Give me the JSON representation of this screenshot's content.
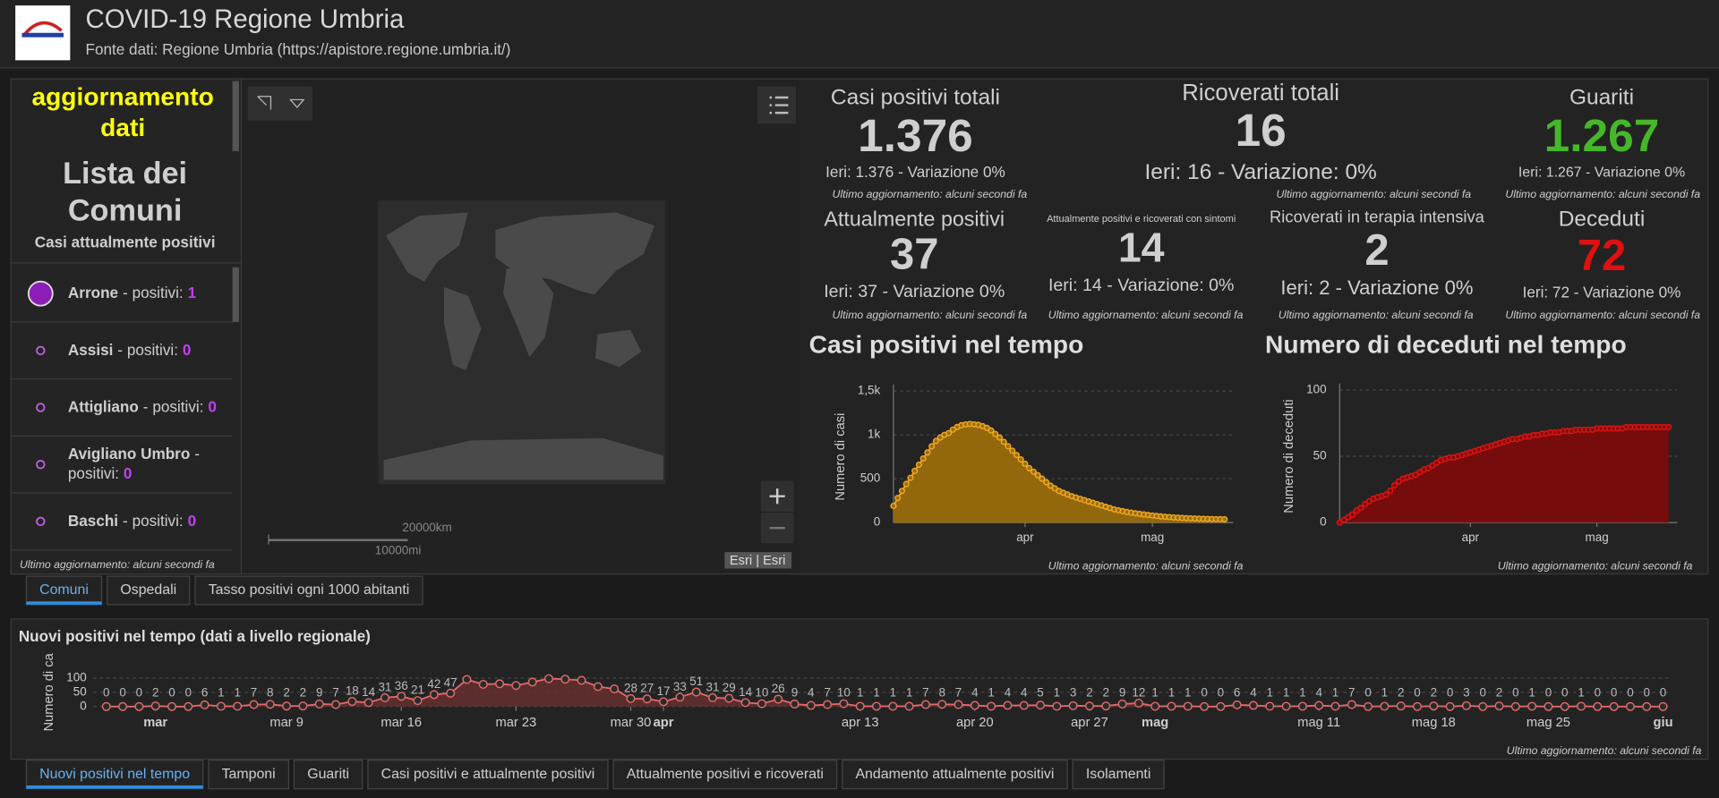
{
  "header": {
    "title": "COVID-19 Regione Umbria",
    "subtitle": "Fonte dati: Regione Umbria (https://apistore.regione.umbria.it/)"
  },
  "sidebar": {
    "heading_lines": [
      "aggiornamento",
      "dati"
    ],
    "list_title_lines": [
      "Lista dei",
      "Comuni"
    ],
    "list_subtitle": "Casi attualmente positivi",
    "separator": "-",
    "items": [
      {
        "name": "Arrone",
        "label": "positivi:",
        "value": 1
      },
      {
        "name": "Assisi",
        "label": "positivi:",
        "value": 0
      },
      {
        "name": "Attigliano",
        "label": "positivi:",
        "value": 0
      },
      {
        "name": "Avigliano Umbro",
        "label": "positivi:",
        "value": 0
      },
      {
        "name": "Baschi",
        "label": "positivi:",
        "value": 0
      }
    ],
    "footer": "Ultimo aggiornamento: alcuni secondi fa"
  },
  "map": {
    "scale_km": "20000km",
    "scale_mi": "10000mi",
    "attribution": "Esri | Esri"
  },
  "indicators": [
    {
      "title": "Casi positivi totali",
      "value": "1.376",
      "subtitle": "Ieri: 1.376 - Variazione 0%",
      "footer": "Ultimo aggiornamento: alcuni secondi fa",
      "color": "#cfcfcf"
    },
    {
      "title": "Ricoverati totali",
      "value": "16",
      "subtitle": "Ieri: 16 - Variazione: 0%",
      "footer": "Ultimo aggiornamento: alcuni secondi fa",
      "color": "#cfcfcf"
    },
    {
      "title": "Guariti",
      "value": "1.267",
      "subtitle": "Ieri: 1.267 - Variazione 0%",
      "footer": "Ultimo aggiornamento: alcuni secondi fa",
      "color": "#45b82a"
    },
    {
      "title": "Attualmente positivi",
      "value": "37",
      "subtitle": "Ieri: 37 - Variazione 0%",
      "footer": "Ultimo aggiornamento: alcuni secondi fa",
      "color": "#cfcfcf"
    },
    {
      "title": "Attualmente positivi e ricoverati con sintomi",
      "value": "14",
      "subtitle": "Ieri: 14 - Variazione: 0%",
      "footer": "Ultimo aggiornamento: alcuni secondi fa",
      "color": "#cfcfcf"
    },
    {
      "title": "Ricoverati in terapia intensiva",
      "value": "2",
      "subtitle": "Ieri: 2 - Variazione 0%",
      "footer": "Ultimo aggiornamento: alcuni secondi fa",
      "color": "#cfcfcf"
    },
    {
      "title": "Deceduti",
      "value": "72",
      "subtitle": "Ieri: 72 - Variazione 0%",
      "footer": "Ultimo aggiornamento: alcuni secondi fa",
      "color": "#e01010"
    }
  ],
  "tabs_top": [
    "Comuni",
    "Ospedali",
    "Tasso positivi ogni 1000 abitanti"
  ],
  "tabs_bottom": [
    "Nuovi positivi nel tempo",
    "Tamponi",
    "Guariti",
    "Casi positivi e attualmente positivi",
    "Attualmente positivi e ricoverati",
    "Andamento attualmente positivi",
    "Isolamenti"
  ],
  "chart_data": [
    {
      "type": "area",
      "title": "Casi positivi nel tempo",
      "ylabel": "Numero di casi",
      "footer": "Ultimo aggiornamento: alcuni secondi fa",
      "color": "#f0a820",
      "fill": "#9a6c0c",
      "grid": true,
      "ylim": [
        0,
        1500
      ],
      "yticks": [
        0,
        500,
        {
          "value": 1000,
          "label": "1k"
        },
        {
          "value": 1500,
          "label": "1,5k"
        }
      ],
      "categories": [
        null,
        null,
        null,
        null,
        null,
        null,
        null,
        null,
        null,
        null,
        null,
        null,
        null,
        null,
        null,
        null,
        null,
        null,
        null,
        null,
        null,
        null,
        null,
        null,
        null,
        null,
        null,
        null,
        null,
        null,
        null,
        "apr",
        null,
        null,
        null,
        null,
        null,
        null,
        null,
        null,
        null,
        null,
        null,
        null,
        null,
        null,
        null,
        null,
        null,
        null,
        null,
        null,
        null,
        null,
        null,
        null,
        null,
        null,
        null,
        null,
        null,
        "mag",
        null,
        null,
        null,
        null,
        null,
        null,
        null,
        null,
        null,
        null,
        null,
        null,
        null,
        null,
        null,
        null,
        null
      ],
      "values": [
        190,
        280,
        360,
        440,
        510,
        590,
        660,
        730,
        800,
        870,
        930,
        970,
        1000,
        1020,
        1060,
        1090,
        1110,
        1120,
        1125,
        1120,
        1115,
        1100,
        1080,
        1050,
        1010,
        970,
        920,
        870,
        820,
        770,
        720,
        670,
        620,
        580,
        540,
        500,
        460,
        420,
        390,
        360,
        340,
        320,
        300,
        285,
        270,
        255,
        240,
        225,
        210,
        195,
        180,
        165,
        150,
        140,
        130,
        120,
        112,
        105,
        98,
        92,
        86,
        80,
        75,
        70,
        66,
        62,
        58,
        55,
        52,
        50,
        48,
        46,
        44,
        42,
        41,
        40,
        39,
        38,
        37
      ]
    },
    {
      "type": "area",
      "title": "Numero di deceduti nel tempo",
      "ylabel": "Numero di deceduti",
      "footer": "Ultimo aggiornamento: alcuni secondi fa",
      "color": "#e01414",
      "fill": "#7c0c0c",
      "grid": true,
      "ylim": [
        0,
        100
      ],
      "yticks": [
        0,
        50,
        100
      ],
      "categories": [
        null,
        null,
        null,
        null,
        null,
        null,
        null,
        null,
        null,
        null,
        null,
        null,
        null,
        null,
        null,
        null,
        null,
        null,
        null,
        null,
        null,
        null,
        null,
        null,
        null,
        null,
        null,
        null,
        null,
        null,
        null,
        "apr",
        null,
        null,
        null,
        null,
        null,
        null,
        null,
        null,
        null,
        null,
        null,
        null,
        null,
        null,
        null,
        null,
        null,
        null,
        null,
        null,
        null,
        null,
        null,
        null,
        null,
        null,
        null,
        null,
        null,
        "mag",
        null,
        null,
        null,
        null,
        null,
        null,
        null,
        null,
        null,
        null,
        null,
        null,
        null,
        null,
        null,
        null,
        null
      ],
      "values": [
        0,
        2,
        4,
        6,
        9,
        11,
        14,
        16,
        18,
        19,
        20,
        21,
        24,
        28,
        31,
        33,
        34,
        35,
        36,
        38,
        40,
        41,
        43,
        45,
        47,
        48,
        49,
        49,
        50,
        51,
        52,
        53,
        54,
        55,
        56,
        57,
        58,
        59,
        60,
        61,
        62,
        63,
        63,
        64,
        65,
        65,
        66,
        66,
        67,
        67,
        68,
        68,
        68,
        69,
        69,
        69,
        70,
        70,
        70,
        70,
        70,
        71,
        71,
        71,
        71,
        71,
        71,
        71,
        72,
        72,
        72,
        72,
        72,
        72,
        72,
        72,
        72,
        72,
        72
      ]
    },
    {
      "type": "area",
      "title": "Nuovi positivi nel tempo (dati a livello regionale)",
      "ylabel": "Numero di ca",
      "footer": "Ultimo aggiornamento: alcuni secondi fa",
      "color": "#e06a6a",
      "fill": "#6a2f2f",
      "grid": true,
      "ylim": [
        0,
        100
      ],
      "yticks": [
        0,
        50,
        100
      ],
      "categories": [
        null,
        null,
        null,
        "mar",
        null,
        null,
        null,
        null,
        null,
        null,
        null,
        "mar 9",
        null,
        null,
        null,
        null,
        null,
        null,
        "mar 16",
        null,
        null,
        null,
        null,
        null,
        null,
        "mar 23",
        null,
        null,
        null,
        null,
        null,
        null,
        "mar 30",
        null,
        "apr",
        null,
        null,
        null,
        null,
        null,
        null,
        null,
        null,
        null,
        null,
        null,
        "apr 13",
        null,
        null,
        null,
        null,
        null,
        null,
        "apr 20",
        null,
        null,
        null,
        null,
        null,
        null,
        "apr 27",
        null,
        null,
        null,
        "mag",
        null,
        null,
        null,
        null,
        null,
        null,
        null,
        null,
        null,
        "mag 11",
        null,
        null,
        null,
        null,
        null,
        null,
        "mag 18",
        null,
        null,
        null,
        null,
        null,
        null,
        "mag 25",
        null,
        null,
        null,
        null,
        null,
        null,
        "giu"
      ],
      "values": [
        0,
        0,
        0,
        2,
        0,
        0,
        6,
        1,
        1,
        7,
        8,
        2,
        2,
        9,
        7,
        18,
        14,
        31,
        36,
        21,
        42,
        47,
        95,
        78,
        80,
        74,
        86,
        98,
        96,
        92,
        70,
        62,
        28,
        27,
        17,
        33,
        51,
        31,
        29,
        14,
        10,
        26,
        9,
        4,
        7,
        10,
        1,
        1,
        1,
        1,
        7,
        8,
        7,
        4,
        1,
        4,
        4,
        5,
        1,
        3,
        2,
        2,
        9,
        12,
        1,
        1,
        1,
        0,
        0,
        6,
        4,
        1,
        1,
        1,
        4,
        1,
        7,
        0,
        1,
        2,
        0,
        2,
        0,
        3,
        0,
        2,
        0,
        1,
        0,
        0,
        1,
        0,
        0,
        0,
        0,
        0
      ],
      "value_labels": [
        "0",
        "0",
        "0",
        "2",
        "0",
        "0",
        "6",
        "1",
        "1",
        "7",
        "8",
        "2",
        "2",
        "9",
        "7",
        "18",
        "14",
        "31",
        "36",
        "21",
        "42",
        "47",
        null,
        null,
        null,
        null,
        null,
        null,
        null,
        null,
        null,
        null,
        "28",
        "27",
        "17",
        "33",
        "51",
        "31",
        "29",
        "14",
        "10",
        "26",
        "9",
        "4",
        "7",
        "10",
        "1",
        "1",
        "1",
        "1",
        "7",
        "8",
        "7",
        "4",
        "1",
        "4",
        "4",
        "5",
        "1",
        "3",
        "2",
        "2",
        "9",
        "12",
        "1",
        "1",
        "1",
        "0",
        "0",
        "6",
        "4",
        "1",
        "1",
        "1",
        "4",
        "1",
        "7",
        "0",
        "1",
        "2",
        "0",
        "2",
        "0",
        "3",
        "0",
        "2",
        "0",
        "1",
        "0",
        "0",
        "1",
        "0",
        "0",
        "0",
        "0",
        "0"
      ]
    }
  ]
}
